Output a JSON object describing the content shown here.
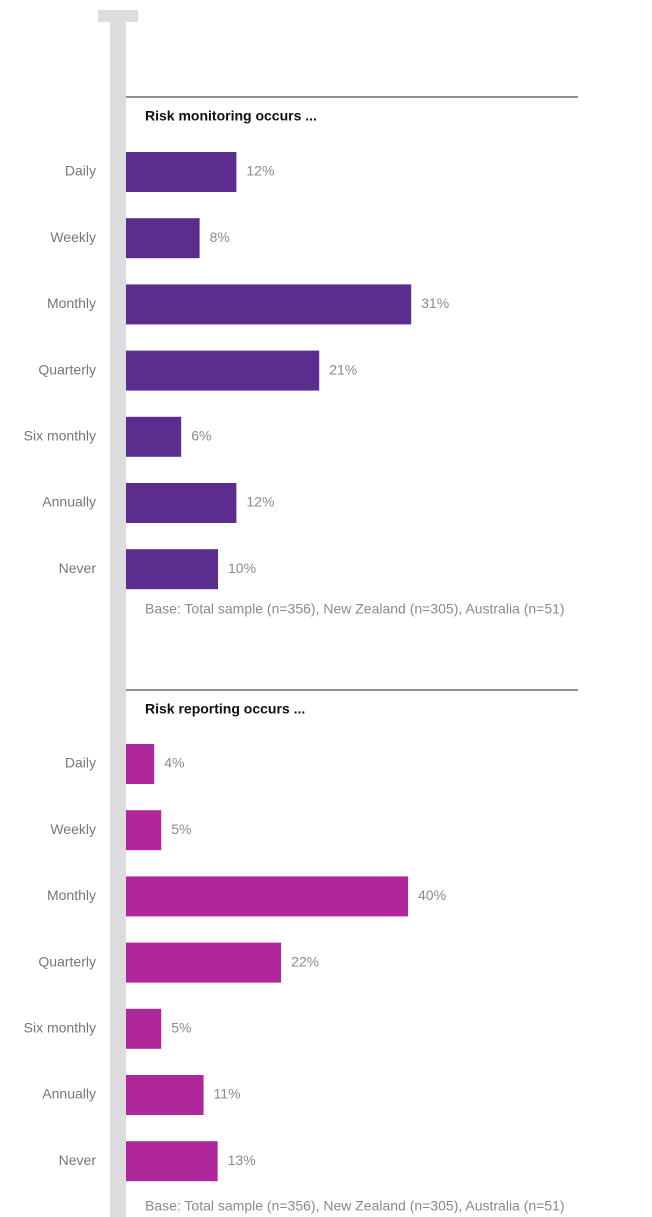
{
  "chart_data": [
    {
      "type": "bar",
      "orientation": "horizontal",
      "title": "Risk monitoring occurs ...",
      "categories": [
        "Daily",
        "Weekly",
        "Monthly",
        "Quarterly",
        "Six monthly",
        "Annually",
        "Never"
      ],
      "values": [
        12,
        8,
        31,
        21,
        6,
        12,
        10
      ],
      "value_labels": [
        "12%",
        "8%",
        "31%",
        "21%",
        "6%",
        "12%",
        "10%"
      ],
      "color": "#5b2d8f",
      "note": "Base: Total sample (n=356), New Zealand (n=305), Australia (n=51)"
    },
    {
      "type": "bar",
      "orientation": "horizontal",
      "title": "Risk reporting occurs ...",
      "categories": [
        "Daily",
        "Weekly",
        "Monthly",
        "Quarterly",
        "Six monthly",
        "Annually",
        "Never"
      ],
      "values": [
        4,
        5,
        40,
        22,
        5,
        11,
        13
      ],
      "value_labels": [
        "4%",
        "5%",
        "40%",
        "22%",
        "5%",
        "11%",
        "13%"
      ],
      "color": "#b0279b",
      "note": "Base: Total sample (n=356), New Zealand (n=305), Australia (n=51)"
    }
  ]
}
